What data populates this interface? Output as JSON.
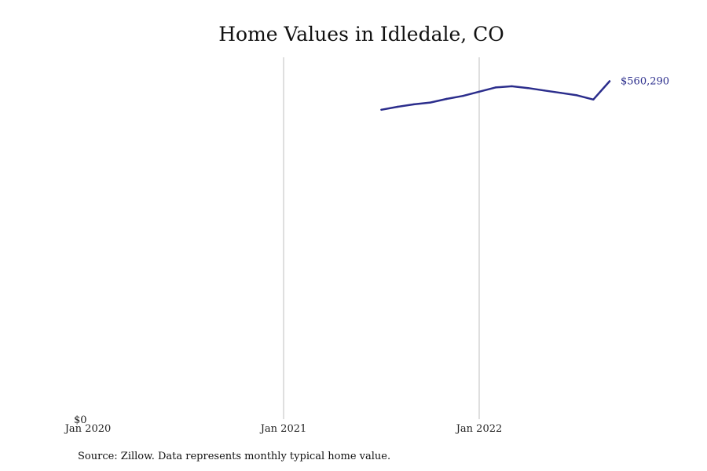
{
  "chart_data": {
    "type": "line",
    "title": "Home Values in Idledale, CO",
    "xlabel": "",
    "ylabel": "",
    "x_ticks": [
      "Jan 2020",
      "Jan 2021",
      "Jan 2022"
    ],
    "y_ticks": [
      "$0"
    ],
    "xlim": [
      "2020-01",
      "2023-01"
    ],
    "ylim": [
      0,
      600000
    ],
    "grid": "vertical lines at yearly ticks",
    "end_label": "$560,290",
    "series": [
      {
        "color": "#2b2d8c",
        "points": [
          {
            "x": "2021-07",
            "y": 513000
          },
          {
            "x": "2021-08",
            "y": 518000
          },
          {
            "x": "2021-09",
            "y": 522000
          },
          {
            "x": "2021-10",
            "y": 525000
          },
          {
            "x": "2021-11",
            "y": 531000
          },
          {
            "x": "2021-12",
            "y": 536000
          },
          {
            "x": "2022-01",
            "y": 543000
          },
          {
            "x": "2022-02",
            "y": 550000
          },
          {
            "x": "2022-03",
            "y": 552000
          },
          {
            "x": "2022-04",
            "y": 549000
          },
          {
            "x": "2022-05",
            "y": 545000
          },
          {
            "x": "2022-06",
            "y": 541000
          },
          {
            "x": "2022-07",
            "y": 537000
          },
          {
            "x": "2022-08",
            "y": 530000
          },
          {
            "x": "2022-09",
            "y": 560290
          }
        ]
      }
    ]
  },
  "footer": {
    "source": "Source: Zillow. Data represents monthly typical home value."
  },
  "colors": {
    "line": "#2b2d8c",
    "gridline": "#bfbfbf",
    "background": "#ffffff"
  }
}
